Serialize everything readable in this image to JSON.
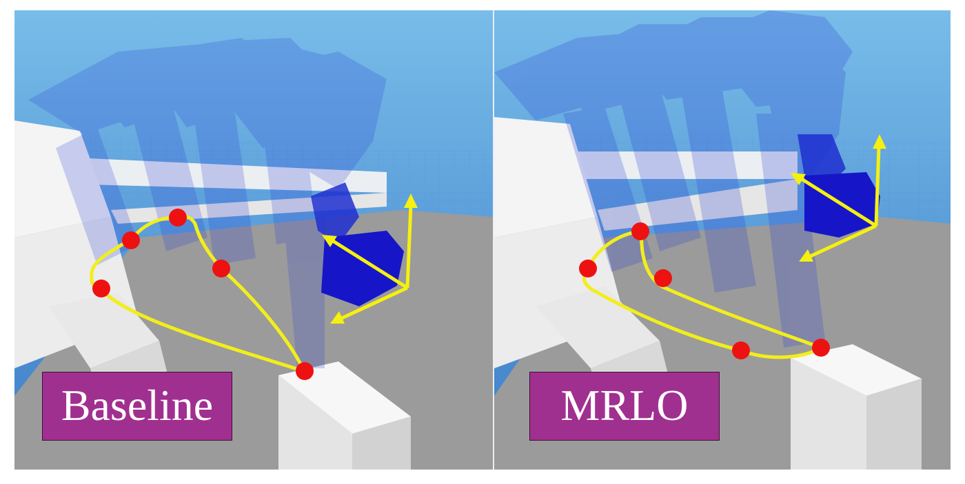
{
  "panels": [
    {
      "label": "Baseline"
    },
    {
      "label": "MRLO"
    }
  ],
  "colors": {
    "sky_top": "#6fb6e6",
    "sky_bottom": "#3f7fc9",
    "floor": "#9a9a9a",
    "robot_ghost": "#2a3fd6",
    "robot_solid": "#1a1acc",
    "trajectory": "#f2ee1c",
    "waypoint": "#ee1111",
    "axes": "#f5f010",
    "label_bg": "#a0308f"
  },
  "icons": [
    "robot-arm-ghost",
    "waypoint-marker",
    "coordinate-axes-arrow"
  ]
}
